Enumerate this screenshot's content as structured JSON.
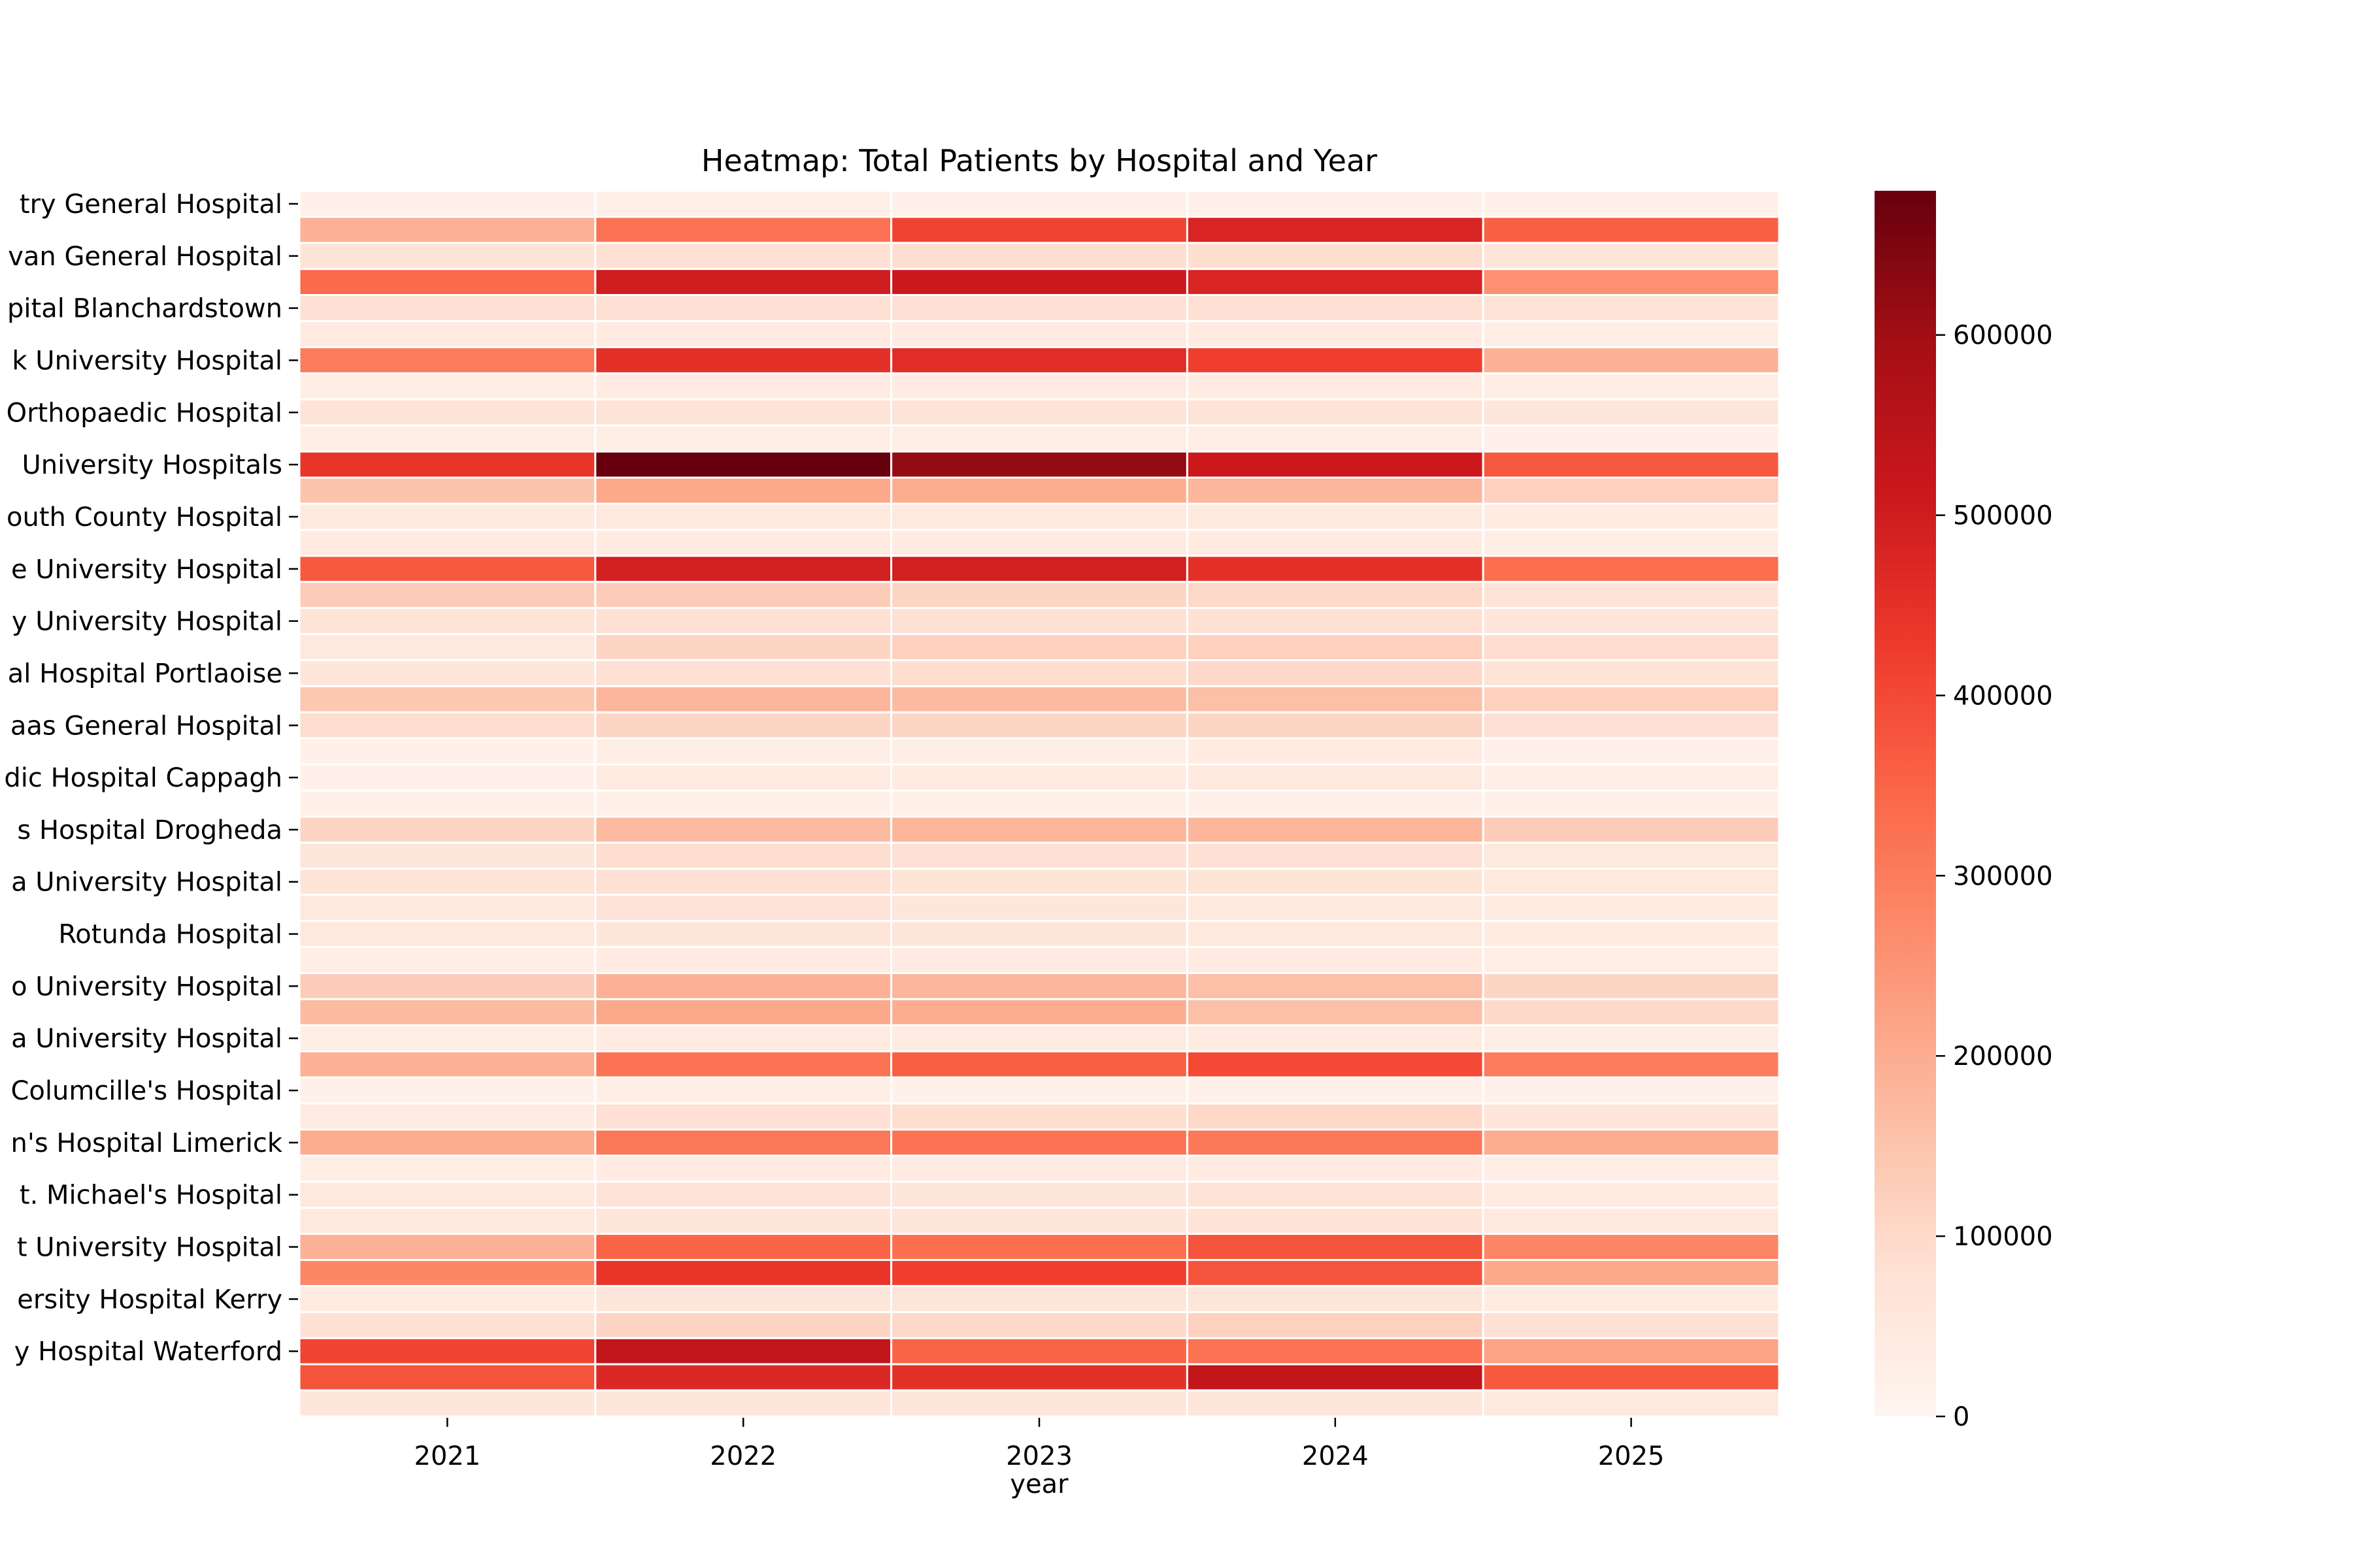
{
  "chart_data": {
    "type": "heatmap",
    "title": "Heatmap: Total Patients by Hospital and Year",
    "xlabel": "year",
    "ylabel": "",
    "x": [
      "2021",
      "2022",
      "2023",
      "2024",
      "2025"
    ],
    "y_tick_labels": [
      "try General Hospital",
      "van General Hospital",
      "pital Blanchardstown",
      "k University Hospital",
      "Orthopaedic Hospital",
      " University Hospitals",
      "outh County Hospital",
      "e University Hospital",
      "y University Hospital",
      "al Hospital Portlaoise",
      "aas General Hospital",
      "dic Hospital Cappagh",
      "s Hospital Drogheda",
      "a University Hospital",
      "Rotunda Hospital",
      "o University Hospital",
      "a University Hospital",
      "Columcille's Hospital",
      "n's Hospital Limerick",
      "t. Michael's Hospital",
      "t University Hospital",
      "ersity Hospital Kerry",
      "y Hospital Waterford"
    ],
    "values": [
      [
        20000,
        25000,
        20000,
        20000,
        20000
      ],
      [
        190000,
        320000,
        410000,
        480000,
        360000
      ],
      [
        70000,
        80000,
        90000,
        90000,
        60000
      ],
      [
        340000,
        500000,
        510000,
        480000,
        260000
      ],
      [
        80000,
        80000,
        80000,
        80000,
        70000
      ],
      [
        40000,
        40000,
        40000,
        40000,
        30000
      ],
      [
        300000,
        450000,
        460000,
        420000,
        190000
      ],
      [
        30000,
        40000,
        40000,
        40000,
        30000
      ],
      [
        70000,
        70000,
        70000,
        70000,
        60000
      ],
      [
        30000,
        30000,
        30000,
        30000,
        20000
      ],
      [
        440000,
        680000,
        620000,
        510000,
        370000
      ],
      [
        150000,
        210000,
        200000,
        180000,
        120000
      ],
      [
        50000,
        50000,
        50000,
        50000,
        40000
      ],
      [
        40000,
        40000,
        40000,
        40000,
        30000
      ],
      [
        370000,
        490000,
        490000,
        450000,
        330000
      ],
      [
        130000,
        130000,
        110000,
        100000,
        70000
      ],
      [
        70000,
        80000,
        80000,
        80000,
        60000
      ],
      [
        50000,
        110000,
        120000,
        120000,
        90000
      ],
      [
        60000,
        80000,
        90000,
        100000,
        70000
      ],
      [
        140000,
        180000,
        170000,
        160000,
        120000
      ],
      [
        90000,
        110000,
        110000,
        110000,
        80000
      ],
      [
        20000,
        30000,
        30000,
        40000,
        20000
      ],
      [
        20000,
        40000,
        40000,
        50000,
        30000
      ],
      [
        20000,
        20000,
        20000,
        20000,
        20000
      ],
      [
        110000,
        170000,
        180000,
        180000,
        130000
      ],
      [
        60000,
        90000,
        80000,
        80000,
        50000
      ],
      [
        70000,
        80000,
        70000,
        70000,
        50000
      ],
      [
        50000,
        70000,
        60000,
        50000,
        40000
      ],
      [
        50000,
        60000,
        60000,
        50000,
        40000
      ],
      [
        30000,
        40000,
        40000,
        40000,
        30000
      ],
      [
        130000,
        190000,
        180000,
        160000,
        110000
      ],
      [
        170000,
        210000,
        200000,
        160000,
        100000
      ],
      [
        30000,
        40000,
        40000,
        40000,
        30000
      ],
      [
        190000,
        320000,
        360000,
        400000,
        300000
      ],
      [
        20000,
        30000,
        20000,
        20000,
        20000
      ],
      [
        40000,
        80000,
        90000,
        100000,
        60000
      ],
      [
        200000,
        310000,
        320000,
        310000,
        200000
      ],
      [
        30000,
        40000,
        40000,
        40000,
        30000
      ],
      [
        50000,
        70000,
        60000,
        70000,
        40000
      ],
      [
        50000,
        60000,
        60000,
        70000,
        50000
      ],
      [
        190000,
        350000,
        330000,
        380000,
        280000
      ],
      [
        280000,
        440000,
        420000,
        380000,
        210000
      ],
      [
        40000,
        60000,
        60000,
        60000,
        40000
      ],
      [
        80000,
        110000,
        100000,
        120000,
        80000
      ],
      [
        410000,
        530000,
        350000,
        320000,
        220000
      ],
      [
        380000,
        470000,
        450000,
        530000,
        370000
      ],
      [
        60000,
        60000,
        60000,
        60000,
        50000
      ]
    ],
    "colorbar": {
      "min": 0,
      "max": 680000,
      "ticks": [
        0,
        100000,
        200000,
        300000,
        400000,
        500000,
        600000
      ],
      "colormap": "Reds"
    },
    "grid": false,
    "legend": "colorbar-right"
  }
}
